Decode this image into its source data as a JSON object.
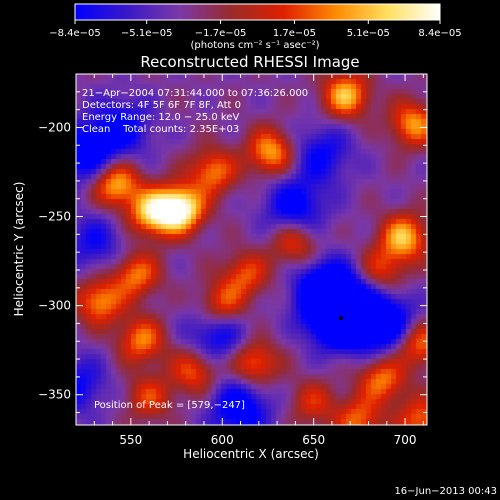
{
  "chart_data": {
    "type": "heatmap",
    "title": "Reconstructed RHESSI Image",
    "xlabel": "Heliocentric X (arcsec)",
    "ylabel": "Heliocentric Y (arcsec)",
    "xlim": [
      520,
      712
    ],
    "ylim": [
      -367,
      -170
    ],
    "x_ticks": [
      550,
      600,
      650,
      700
    ],
    "y_ticks": [
      -350,
      -300,
      -250,
      -200
    ],
    "x_tick_labels": [
      "550",
      "600",
      "650",
      "700"
    ],
    "y_tick_labels": [
      "−350",
      "−300",
      "−250",
      "−200"
    ],
    "colorbar": {
      "min": -8.4e-05,
      "max": 8.4e-05,
      "tick_values": [
        -8.4e-05,
        -5.1e-05,
        -1.7e-05,
        1.7e-05,
        5.1e-05,
        8.4e-05
      ],
      "tick_labels": [
        "−8.4e−05",
        "−5.1e−05",
        "−1.7e−05",
        "1.7e−05",
        "5.1e−05",
        "8.4e−05"
      ],
      "unit_label": "(photons cm⁻² s⁻¹ asec⁻²)",
      "stops": [
        "#0000ff",
        "#3a18c8",
        "#7a38a8",
        "#9a2a2a",
        "#e02000",
        "#ff8a00",
        "#ffe060",
        "#ffffff"
      ]
    },
    "info_lines": [
      "21−Apr−2004 07:31:44.000 to 07:36:26.000",
      "Detectors: 4F 5F 6F 7F 8F, Att 0",
      "Energy Range: 12.0 − 25.0 keV",
      "Clean    Total counts: 2.35E+03"
    ],
    "peak_text": "Position of Peak = [579,−247]",
    "marker": {
      "x": 665,
      "y": -307
    },
    "hot_spots": [
      {
        "x": 577,
        "y": -246,
        "v": 1.0
      },
      {
        "x": 562,
        "y": -248,
        "v": 0.75
      },
      {
        "x": 542,
        "y": -232,
        "v": 0.7
      },
      {
        "x": 595,
        "y": -225,
        "v": 0.55
      },
      {
        "x": 627,
        "y": -214,
        "v": 0.65
      },
      {
        "x": 668,
        "y": -182,
        "v": 0.7
      },
      {
        "x": 705,
        "y": -198,
        "v": 0.6
      },
      {
        "x": 700,
        "y": -262,
        "v": 0.7
      },
      {
        "x": 688,
        "y": -280,
        "v": 0.4
      },
      {
        "x": 640,
        "y": -265,
        "v": 0.45
      },
      {
        "x": 553,
        "y": -283,
        "v": 0.55
      },
      {
        "x": 533,
        "y": -298,
        "v": 0.6
      },
      {
        "x": 600,
        "y": -300,
        "v": 0.5
      },
      {
        "x": 613,
        "y": -283,
        "v": 0.45
      },
      {
        "x": 556,
        "y": -320,
        "v": 0.55
      },
      {
        "x": 585,
        "y": -337,
        "v": 0.5
      },
      {
        "x": 618,
        "y": -333,
        "v": 0.55
      },
      {
        "x": 560,
        "y": -352,
        "v": 0.4
      },
      {
        "x": 688,
        "y": -342,
        "v": 0.55
      },
      {
        "x": 708,
        "y": -322,
        "v": 0.55
      },
      {
        "x": 675,
        "y": -365,
        "v": 0.5
      },
      {
        "x": 709,
        "y": -365,
        "v": 0.5
      },
      {
        "x": 650,
        "y": -355,
        "v": 0.35
      }
    ],
    "cold_spots": [
      {
        "x": 665,
        "y": -307,
        "v": 1.0
      },
      {
        "x": 658,
        "y": -292,
        "v": 0.8
      },
      {
        "x": 689,
        "y": -310,
        "v": 0.7
      },
      {
        "x": 640,
        "y": -245,
        "v": 0.5
      },
      {
        "x": 610,
        "y": -358,
        "v": 0.55
      },
      {
        "x": 597,
        "y": -317,
        "v": 0.45
      },
      {
        "x": 525,
        "y": -215,
        "v": 0.55
      },
      {
        "x": 545,
        "y": -200,
        "v": 0.45
      },
      {
        "x": 655,
        "y": -215,
        "v": 0.4
      },
      {
        "x": 520,
        "y": -345,
        "v": 0.4
      },
      {
        "x": 530,
        "y": -265,
        "v": 0.35
      }
    ],
    "grid": false
  },
  "timestamp": "16−Jun−2013 00:43"
}
